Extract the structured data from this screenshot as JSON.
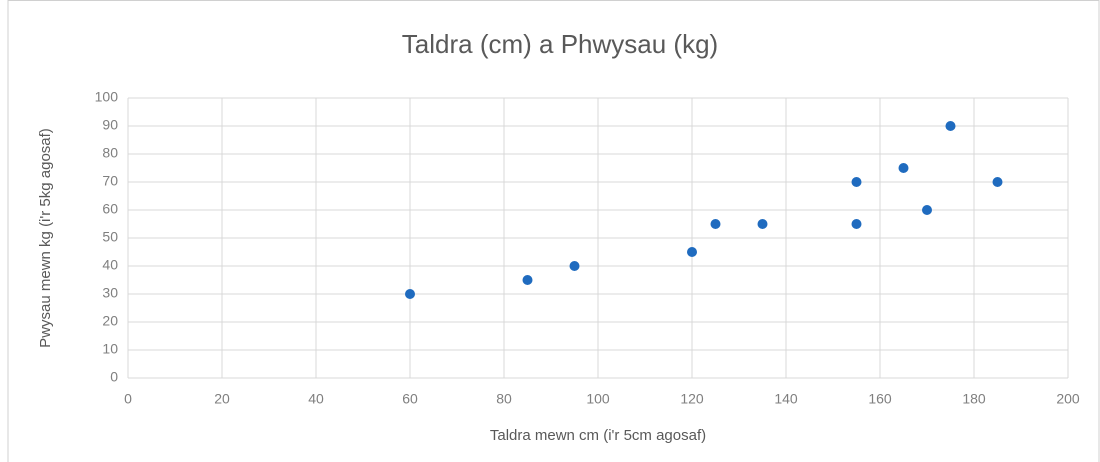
{
  "chart_data": {
    "type": "scatter",
    "title": "Taldra (cm) a Phwysau (kg)",
    "x_label": "Taldra mewn cm (i'r 5cm agosaf)",
    "y_label": "Pwysau mewn kg (i'r 5kg agosaf)",
    "series": [
      {
        "color": "#1f6bbf",
        "x": [
          60,
          85,
          95,
          120,
          125,
          135,
          155,
          155,
          165,
          170,
          175,
          185
        ],
        "values": [
          30,
          35,
          40,
          45,
          55,
          55,
          70,
          55,
          75,
          60,
          90,
          70
        ]
      }
    ],
    "xlim": [
      0,
      200
    ],
    "xticks": [
      0,
      20,
      40,
      60,
      80,
      100,
      120,
      140,
      160,
      180,
      200
    ],
    "ylim": [
      0,
      100
    ],
    "yticks": [
      0,
      10,
      20,
      30,
      40,
      50,
      60,
      70,
      80,
      90,
      100
    ],
    "grid": true
  }
}
